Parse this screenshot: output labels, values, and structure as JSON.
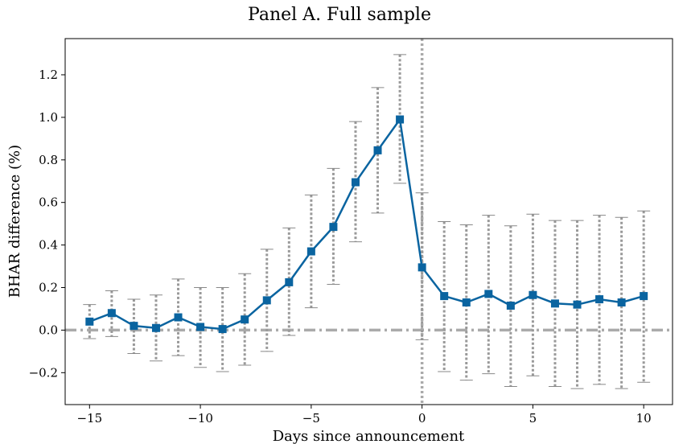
{
  "chart_data": {
    "type": "line",
    "title": "Panel A. Full sample",
    "xlabel": "Days since announcement",
    "ylabel": "BHAR difference (%)",
    "xlim": [
      -16.1,
      11.3
    ],
    "ylim": [
      -0.35,
      1.37
    ],
    "xticks": [
      -15,
      -10,
      -5,
      0,
      5,
      10
    ],
    "xtick_labels": [
      "−15",
      "−10",
      "−5",
      "0",
      "5",
      "10"
    ],
    "yticks": [
      -0.2,
      0.0,
      0.2,
      0.4,
      0.6,
      0.8,
      1.0,
      1.2
    ],
    "ytick_labels": [
      "−0.2",
      "0.0",
      "0.2",
      "0.4",
      "0.6",
      "0.8",
      "1.0",
      "1.2"
    ],
    "grid": false,
    "reference_lines": [
      {
        "axis": "y",
        "value": 0,
        "style": "dash-dot",
        "color": "#aaaaaa"
      },
      {
        "axis": "x",
        "value": 0,
        "style": "dotted",
        "color": "#aaaaaa"
      }
    ],
    "series": [
      {
        "color": "#0a64a0",
        "marker": "square",
        "x": [
          -15,
          -14,
          -13,
          -12,
          -11,
          -10,
          -9,
          -8,
          -7,
          -6,
          -5,
          -4,
          -3,
          -2,
          -1,
          0,
          1,
          2,
          3,
          4,
          5,
          6,
          7,
          8,
          9,
          10
        ],
        "y": [
          0.04,
          0.08,
          0.02,
          0.01,
          0.06,
          0.015,
          0.005,
          0.05,
          0.14,
          0.225,
          0.37,
          0.485,
          0.695,
          0.845,
          0.99,
          0.295,
          0.16,
          0.13,
          0.17,
          0.115,
          0.165,
          0.125,
          0.12,
          0.145,
          0.13,
          0.16
        ],
        "ci_lower": [
          -0.04,
          -0.03,
          -0.11,
          -0.145,
          -0.12,
          -0.175,
          -0.195,
          -0.165,
          -0.1,
          -0.025,
          0.105,
          0.215,
          0.415,
          0.55,
          0.69,
          -0.045,
          -0.195,
          -0.235,
          -0.205,
          -0.265,
          -0.215,
          -0.265,
          -0.275,
          -0.255,
          -0.275,
          -0.245
        ],
        "ci_upper": [
          0.12,
          0.185,
          0.145,
          0.165,
          0.24,
          0.2,
          0.2,
          0.265,
          0.38,
          0.48,
          0.635,
          0.76,
          0.98,
          1.14,
          1.295,
          0.645,
          0.51,
          0.495,
          0.54,
          0.49,
          0.545,
          0.515,
          0.515,
          0.54,
          0.53,
          0.56
        ]
      }
    ]
  }
}
